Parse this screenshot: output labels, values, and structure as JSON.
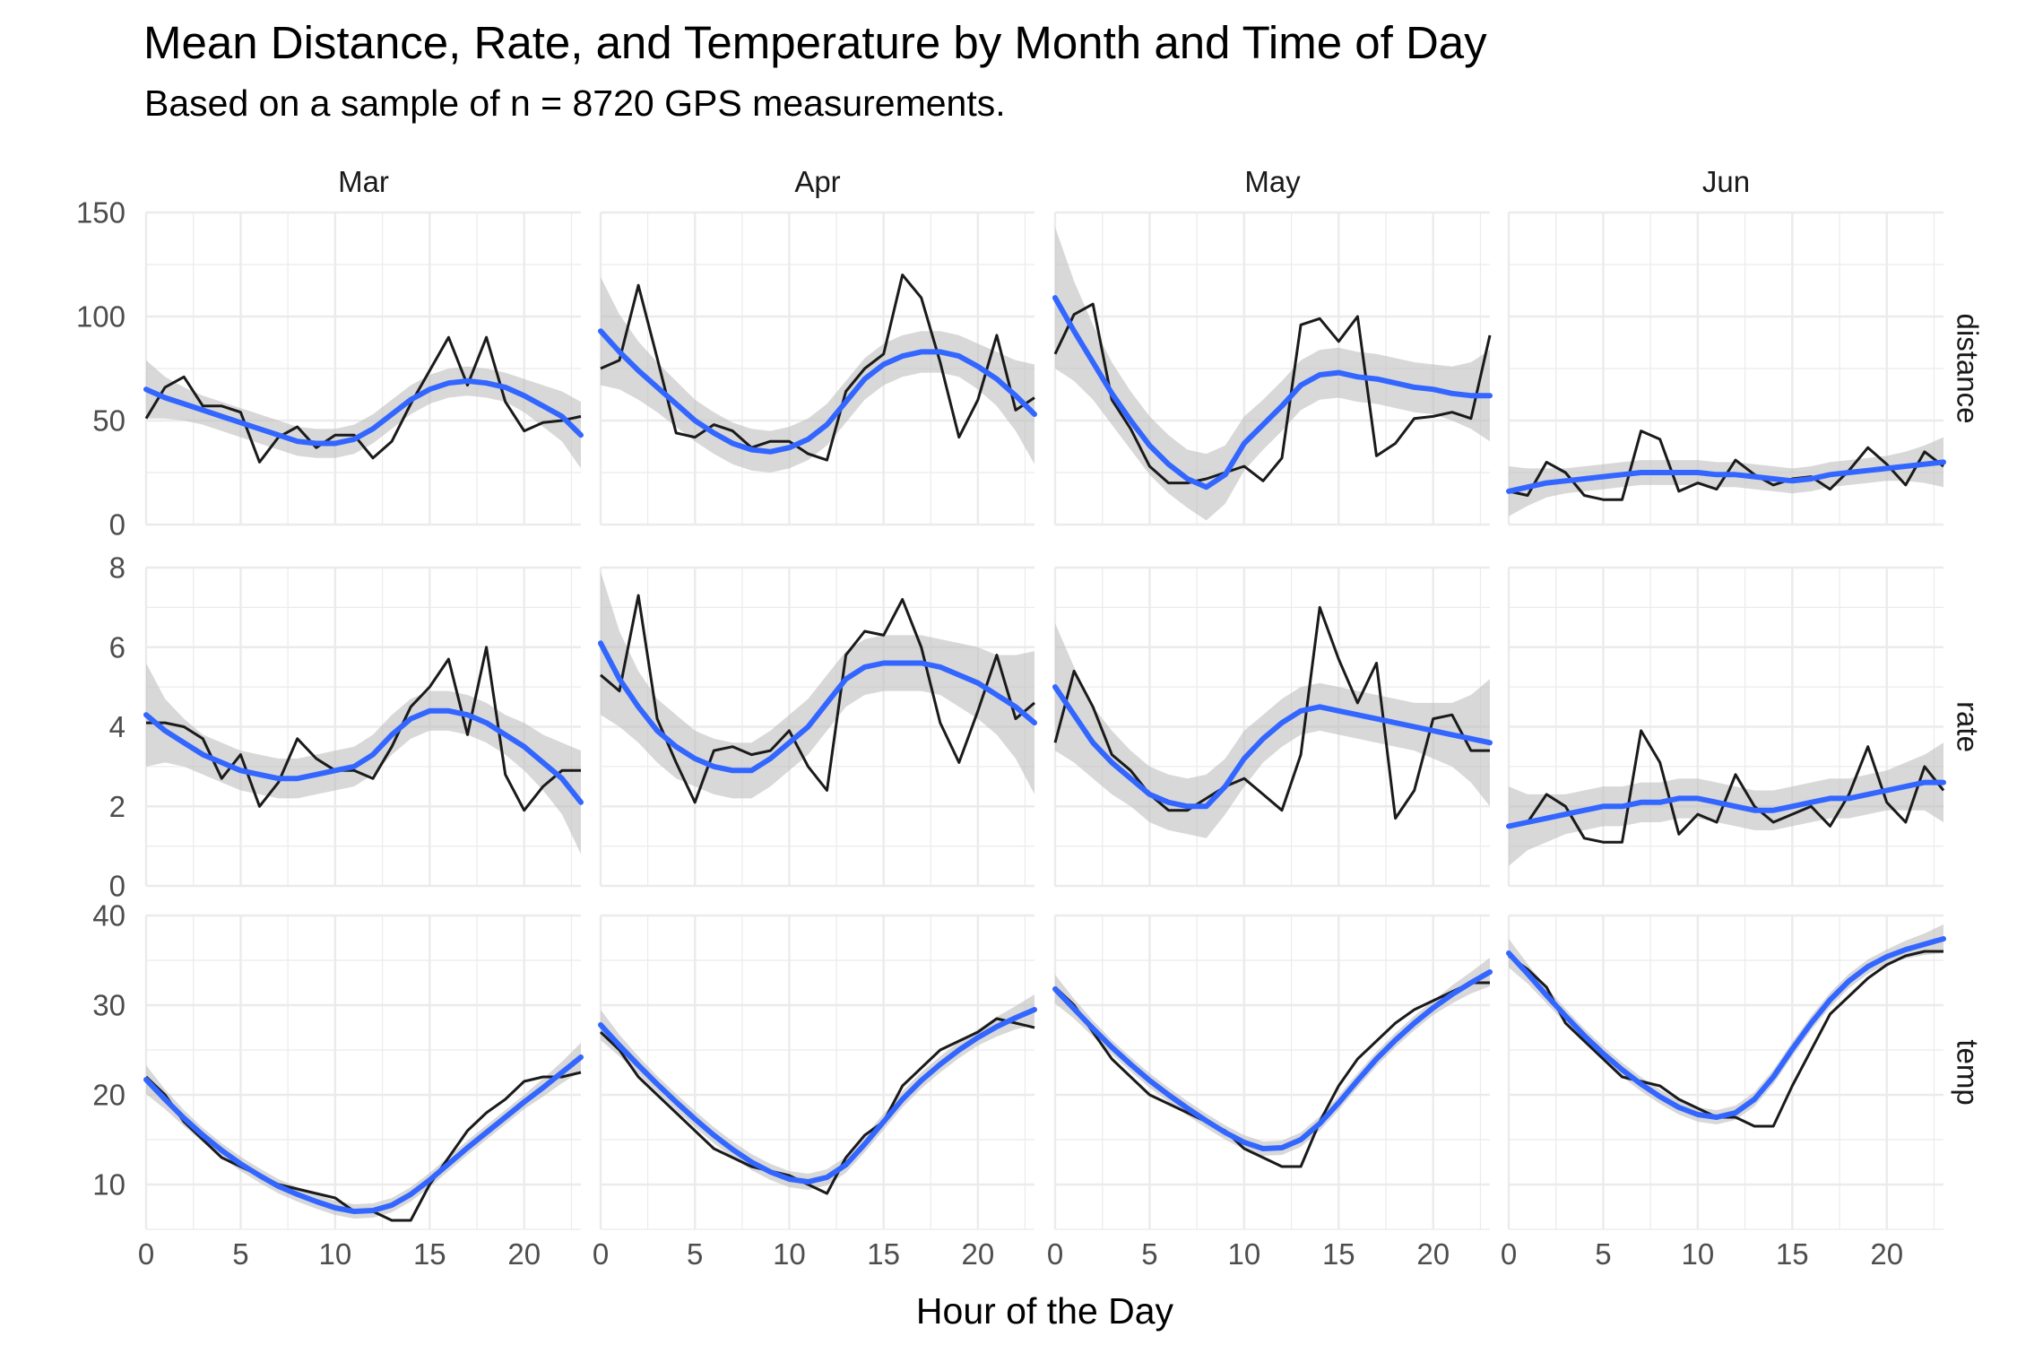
{
  "chart_data": {
    "type": "line",
    "title": "Mean Distance, Rate, and Temperature by Month and Time of Day",
    "subtitle": "Based on a sample of n = 8720 GPS measurements.",
    "xlabel": "Hour of the Day",
    "ylabel": "",
    "grid": true,
    "legend": "none",
    "colors": {
      "observed": "#1a1a1a",
      "smooth": "#3366ff",
      "ribbon": "#bebebe",
      "grid": "#ebebeb"
    },
    "columns": [
      "Mar",
      "Apr",
      "May",
      "Jun"
    ],
    "rows": [
      {
        "label": "distance",
        "ylim": [
          0,
          150
        ],
        "yticks": [
          0,
          50,
          100,
          150
        ]
      },
      {
        "label": "rate",
        "ylim": [
          0,
          8
        ],
        "yticks": [
          0,
          2,
          4,
          6,
          8
        ]
      },
      {
        "label": "temp",
        "ylim": [
          5,
          40
        ],
        "yticks": [
          10,
          20,
          30,
          40
        ]
      }
    ],
    "xlim": [
      0,
      23
    ],
    "xticks": [
      0,
      5,
      10,
      15,
      20
    ],
    "x": [
      0,
      1,
      2,
      3,
      4,
      5,
      6,
      7,
      8,
      9,
      10,
      11,
      12,
      13,
      14,
      15,
      16,
      17,
      18,
      19,
      20,
      21,
      22,
      23
    ],
    "panels": [
      {
        "row": "distance",
        "col": "Mar",
        "observed": [
          51,
          66,
          71,
          57,
          57,
          54,
          30,
          42,
          47,
          37,
          43,
          43,
          32,
          40,
          58,
          74,
          90,
          67,
          90,
          59,
          45,
          49,
          50,
          52
        ],
        "smooth": [
          65,
          61,
          58,
          55,
          52,
          49,
          46,
          43,
          40,
          39,
          39,
          41,
          46,
          53,
          60,
          65,
          68,
          69,
          68,
          66,
          62,
          57,
          52,
          43
        ],
        "se": [
          14,
          10,
          8,
          7,
          7,
          7,
          7,
          7,
          7,
          7,
          7,
          7,
          7,
          7,
          7,
          7,
          7,
          7,
          7,
          7,
          8,
          10,
          12,
          16
        ]
      },
      {
        "row": "distance",
        "col": "Apr",
        "observed": [
          75,
          79,
          115,
          80,
          44,
          42,
          48,
          45,
          37,
          40,
          40,
          34,
          31,
          64,
          75,
          82,
          120,
          109,
          78,
          42,
          60,
          91,
          55,
          61
        ],
        "smooth": [
          93,
          83,
          74,
          66,
          58,
          50,
          44,
          39,
          36,
          35,
          37,
          41,
          48,
          59,
          70,
          77,
          81,
          83,
          83,
          81,
          76,
          70,
          62,
          53
        ],
        "se": [
          26,
          18,
          14,
          12,
          11,
          10,
          10,
          10,
          10,
          10,
          10,
          10,
          10,
          10,
          10,
          10,
          10,
          10,
          10,
          10,
          11,
          13,
          17,
          24
        ]
      },
      {
        "row": "distance",
        "col": "May",
        "observed": [
          82,
          101,
          106,
          60,
          46,
          28,
          20,
          20,
          22,
          25,
          28,
          21,
          32,
          96,
          99,
          88,
          100,
          33,
          39,
          51,
          52,
          54,
          51,
          91
        ],
        "smooth": [
          109,
          93,
          78,
          63,
          50,
          38,
          29,
          22,
          18,
          24,
          39,
          48,
          57,
          67,
          72,
          73,
          71,
          70,
          68,
          66,
          65,
          63,
          62,
          62
        ],
        "se": [
          34,
          24,
          18,
          15,
          14,
          14,
          14,
          14,
          16,
          14,
          13,
          12,
          12,
          12,
          12,
          12,
          12,
          12,
          12,
          12,
          12,
          13,
          16,
          22
        ]
      },
      {
        "row": "distance",
        "col": "Jun",
        "observed": [
          16,
          14,
          30,
          25,
          14,
          12,
          12,
          45,
          41,
          16,
          20,
          17,
          31,
          24,
          19,
          22,
          23,
          17,
          26,
          37,
          29,
          19,
          35,
          28
        ],
        "smooth": [
          16,
          18,
          20,
          21,
          22,
          23,
          24,
          25,
          25,
          25,
          25,
          24,
          24,
          23,
          22,
          21,
          22,
          24,
          25,
          26,
          27,
          28,
          29,
          30
        ],
        "se": [
          12,
          9,
          7,
          6,
          6,
          6,
          6,
          6,
          6,
          6,
          6,
          6,
          6,
          6,
          6,
          6,
          6,
          6,
          6,
          6,
          6,
          7,
          9,
          12
        ]
      },
      {
        "row": "rate",
        "col": "Mar",
        "observed": [
          4.1,
          4.1,
          4.0,
          3.7,
          2.7,
          3.3,
          2.0,
          2.6,
          3.7,
          3.2,
          2.9,
          2.9,
          2.7,
          3.5,
          4.5,
          5.0,
          5.7,
          3.8,
          6.0,
          2.8,
          1.9,
          2.5,
          2.9,
          2.9
        ],
        "smooth": [
          4.3,
          3.9,
          3.6,
          3.3,
          3.1,
          2.9,
          2.8,
          2.7,
          2.7,
          2.8,
          2.9,
          3.0,
          3.3,
          3.8,
          4.2,
          4.4,
          4.4,
          4.3,
          4.1,
          3.8,
          3.5,
          3.1,
          2.7,
          2.1
        ],
        "se": [
          1.3,
          0.8,
          0.6,
          0.5,
          0.5,
          0.5,
          0.5,
          0.5,
          0.5,
          0.5,
          0.5,
          0.5,
          0.5,
          0.5,
          0.5,
          0.5,
          0.5,
          0.5,
          0.5,
          0.5,
          0.6,
          0.7,
          0.9,
          1.3
        ]
      },
      {
        "row": "rate",
        "col": "Apr",
        "observed": [
          5.3,
          4.9,
          7.3,
          4.2,
          3.1,
          2.1,
          3.4,
          3.5,
          3.3,
          3.4,
          3.9,
          3.0,
          2.4,
          5.8,
          6.4,
          6.3,
          7.2,
          6.0,
          4.1,
          3.1,
          4.4,
          5.8,
          4.2,
          4.6
        ],
        "smooth": [
          6.1,
          5.2,
          4.5,
          3.9,
          3.5,
          3.2,
          3.0,
          2.9,
          2.9,
          3.2,
          3.6,
          4.0,
          4.6,
          5.2,
          5.5,
          5.6,
          5.6,
          5.6,
          5.5,
          5.3,
          5.1,
          4.8,
          4.5,
          4.1
        ],
        "se": [
          1.8,
          1.2,
          0.9,
          0.8,
          0.8,
          0.7,
          0.7,
          0.7,
          0.7,
          0.7,
          0.7,
          0.7,
          0.7,
          0.7,
          0.7,
          0.7,
          0.7,
          0.7,
          0.7,
          0.8,
          0.9,
          1.0,
          1.3,
          1.8
        ]
      },
      {
        "row": "rate",
        "col": "May",
        "observed": [
          3.6,
          5.4,
          4.5,
          3.3,
          2.9,
          2.3,
          1.9,
          1.9,
          2.2,
          2.5,
          2.7,
          2.3,
          1.9,
          3.3,
          7.0,
          5.7,
          4.6,
          5.6,
          1.7,
          2.4,
          4.2,
          4.3,
          3.4,
          3.4
        ],
        "smooth": [
          5.0,
          4.3,
          3.6,
          3.1,
          2.7,
          2.3,
          2.1,
          2.0,
          2.0,
          2.5,
          3.2,
          3.7,
          4.1,
          4.4,
          4.5,
          4.4,
          4.3,
          4.2,
          4.1,
          4.0,
          3.9,
          3.8,
          3.7,
          3.6
        ],
        "se": [
          1.6,
          1.2,
          0.9,
          0.8,
          0.7,
          0.7,
          0.7,
          0.7,
          0.8,
          0.7,
          0.7,
          0.6,
          0.6,
          0.6,
          0.6,
          0.6,
          0.6,
          0.6,
          0.6,
          0.6,
          0.7,
          0.8,
          1.1,
          1.6
        ]
      },
      {
        "row": "rate",
        "col": "Jun",
        "observed": [
          1.5,
          1.6,
          2.3,
          2.0,
          1.2,
          1.1,
          1.1,
          3.9,
          3.1,
          1.3,
          1.8,
          1.6,
          2.8,
          2.0,
          1.6,
          1.8,
          2.0,
          1.5,
          2.3,
          3.5,
          2.1,
          1.6,
          3.0,
          2.4
        ],
        "smooth": [
          1.5,
          1.6,
          1.7,
          1.8,
          1.9,
          2.0,
          2.0,
          2.1,
          2.1,
          2.2,
          2.2,
          2.1,
          2.0,
          1.9,
          1.9,
          2.0,
          2.1,
          2.2,
          2.2,
          2.3,
          2.4,
          2.5,
          2.6,
          2.6
        ],
        "se": [
          1.0,
          0.7,
          0.6,
          0.5,
          0.5,
          0.5,
          0.5,
          0.5,
          0.5,
          0.5,
          0.5,
          0.5,
          0.5,
          0.5,
          0.5,
          0.5,
          0.5,
          0.5,
          0.5,
          0.5,
          0.5,
          0.6,
          0.7,
          1.0
        ]
      },
      {
        "row": "temp",
        "col": "Mar",
        "observed": [
          22,
          20,
          17,
          15,
          13,
          12,
          11,
          10,
          9.5,
          9,
          8.5,
          7,
          7,
          6,
          6,
          10,
          13,
          16,
          18,
          19.5,
          21.5,
          22,
          22,
          22.5
        ],
        "smooth": [
          21.7,
          19.5,
          17.4,
          15.5,
          13.8,
          12.3,
          11.0,
          9.8,
          8.9,
          8.1,
          7.4,
          7.0,
          7.1,
          7.7,
          8.9,
          10.5,
          12.3,
          14.1,
          15.8,
          17.5,
          19.2,
          20.8,
          22.5,
          24.2
        ],
        "se": [
          1.6,
          1.1,
          0.9,
          0.8,
          0.8,
          0.8,
          0.8,
          0.8,
          0.8,
          0.8,
          0.8,
          0.8,
          0.8,
          0.8,
          0.8,
          0.8,
          0.8,
          0.8,
          0.8,
          0.8,
          0.8,
          1.0,
          1.2,
          1.6
        ]
      },
      {
        "row": "temp",
        "col": "Apr",
        "observed": [
          27,
          25,
          22,
          20,
          18,
          16,
          14,
          13,
          12,
          11.5,
          11,
          10,
          9,
          13,
          15.5,
          17,
          21,
          23,
          25,
          26,
          27,
          28.5,
          28,
          27.5
        ],
        "smooth": [
          27.8,
          25.5,
          23.3,
          21.2,
          19.2,
          17.3,
          15.5,
          13.9,
          12.5,
          11.4,
          10.6,
          10.3,
          10.8,
          12.2,
          14.5,
          17.0,
          19.5,
          21.6,
          23.4,
          25.0,
          26.4,
          27.6,
          28.6,
          29.5
        ],
        "se": [
          1.7,
          1.2,
          1.0,
          0.9,
          0.9,
          0.9,
          0.9,
          0.9,
          0.9,
          0.9,
          0.9,
          0.9,
          0.9,
          0.9,
          0.9,
          0.9,
          0.9,
          0.9,
          0.9,
          0.9,
          0.9,
          1.1,
          1.3,
          1.7
        ]
      },
      {
        "row": "temp",
        "col": "May",
        "observed": [
          32,
          30,
          27,
          24,
          22,
          20,
          19,
          18,
          17,
          16,
          14,
          13,
          12,
          12,
          17,
          21,
          24,
          26,
          28,
          29.5,
          30.5,
          31.5,
          32.5,
          32.5
        ],
        "smooth": [
          31.8,
          29.6,
          27.4,
          25.3,
          23.4,
          21.6,
          20.0,
          18.5,
          17.1,
          15.8,
          14.7,
          14.0,
          14.1,
          15.0,
          16.8,
          19.1,
          21.6,
          24.0,
          26.1,
          28.0,
          29.7,
          31.2,
          32.5,
          33.7
        ],
        "se": [
          1.6,
          1.1,
          0.9,
          0.8,
          0.8,
          0.8,
          0.8,
          0.8,
          0.8,
          0.8,
          0.8,
          0.8,
          0.8,
          0.8,
          0.8,
          0.8,
          0.8,
          0.8,
          0.8,
          0.8,
          0.8,
          1.0,
          1.2,
          1.6
        ]
      },
      {
        "row": "temp",
        "col": "Jun",
        "observed": [
          35.5,
          34,
          32,
          28,
          26,
          24,
          22,
          21.5,
          21,
          19.5,
          18.5,
          17.5,
          17.5,
          16.5,
          16.5,
          21,
          25,
          29,
          31,
          33,
          34.5,
          35.5,
          36,
          36
        ],
        "smooth": [
          35.8,
          33.5,
          31.1,
          28.8,
          26.6,
          24.6,
          22.8,
          21.2,
          19.8,
          18.6,
          17.8,
          17.5,
          18.0,
          19.5,
          22.0,
          25.1,
          28.0,
          30.6,
          32.7,
          34.3,
          35.4,
          36.2,
          36.8,
          37.4
        ],
        "se": [
          1.6,
          1.1,
          0.9,
          0.8,
          0.8,
          0.8,
          0.8,
          0.8,
          0.8,
          0.8,
          0.8,
          0.8,
          0.8,
          0.8,
          0.8,
          0.8,
          0.8,
          0.8,
          0.8,
          0.8,
          0.8,
          1.0,
          1.2,
          1.6
        ]
      }
    ]
  }
}
